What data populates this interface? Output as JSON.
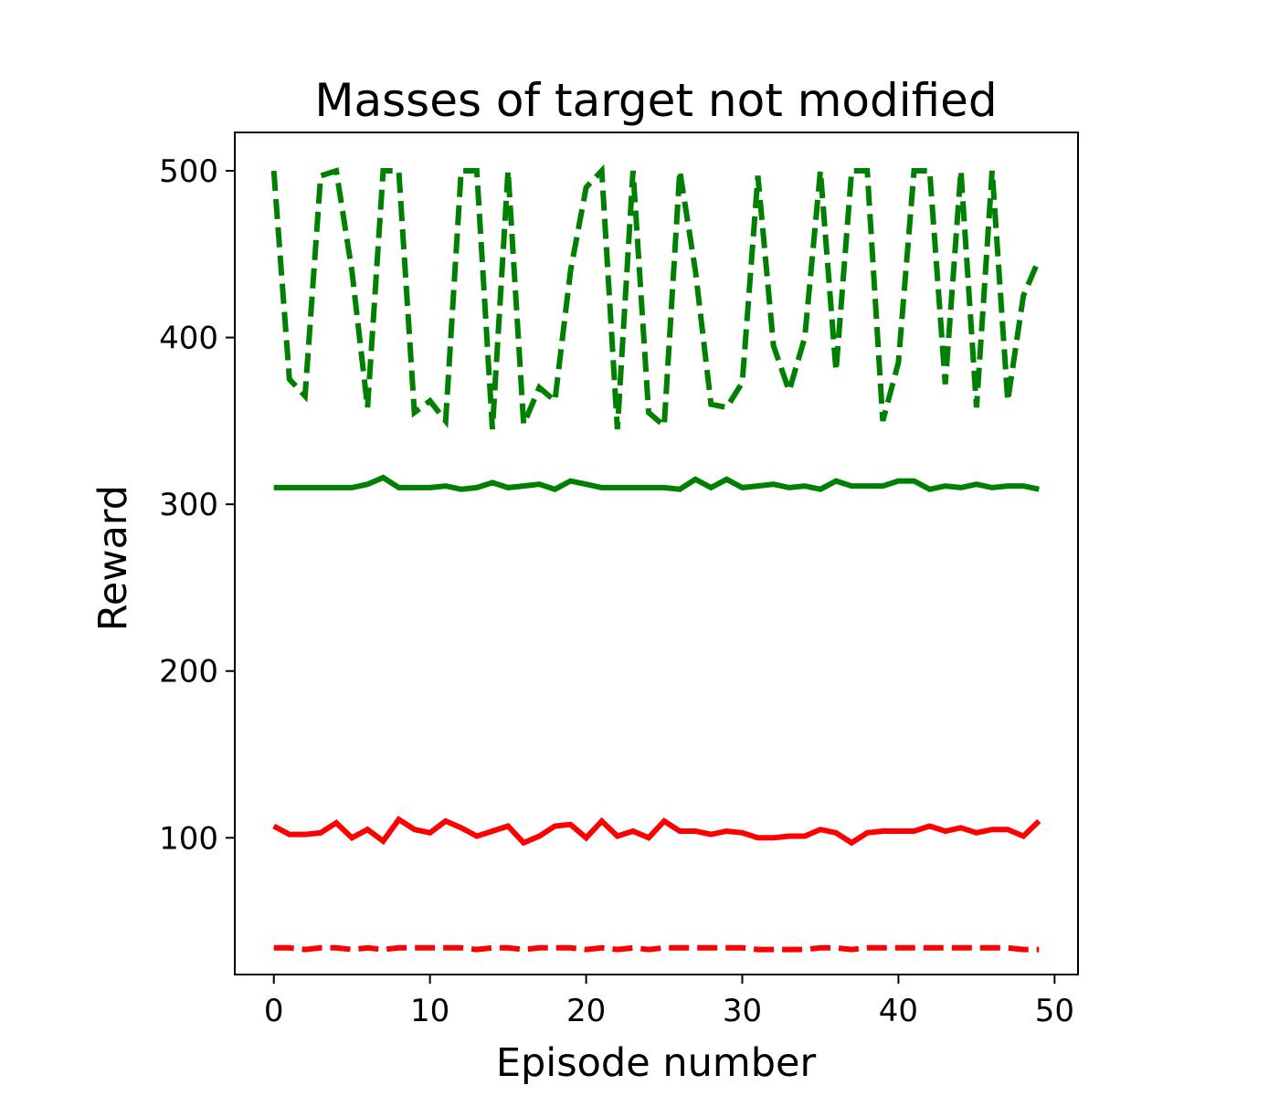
{
  "chart_data": {
    "type": "line",
    "title": "Masses of target not modified",
    "xlabel": "Episode number",
    "ylabel": "Reward",
    "xlim": [
      -2.5,
      51.5
    ],
    "ylim": [
      18,
      523
    ],
    "xticks": [
      0,
      10,
      20,
      30,
      40,
      50
    ],
    "yticks": [
      100,
      200,
      300,
      400,
      500
    ],
    "grid": false,
    "legend": "none",
    "x": [
      0,
      1,
      2,
      3,
      4,
      5,
      6,
      7,
      8,
      9,
      10,
      11,
      12,
      13,
      14,
      15,
      16,
      17,
      18,
      19,
      20,
      21,
      22,
      23,
      24,
      25,
      26,
      27,
      28,
      29,
      30,
      31,
      32,
      33,
      34,
      35,
      36,
      37,
      38,
      39,
      40,
      41,
      42,
      43,
      44,
      45,
      46,
      47,
      48,
      49
    ],
    "series": [
      {
        "color": "#008000",
        "style": "dashed",
        "values": [
          500,
          375,
          365,
          497,
          500,
          440,
          358,
          500,
          500,
          355,
          362,
          350,
          500,
          500,
          345,
          500,
          348,
          370,
          362,
          440,
          490,
          500,
          345,
          500,
          355,
          347,
          500,
          440,
          360,
          358,
          373,
          497,
          395,
          368,
          400,
          500,
          380,
          500,
          500,
          350,
          385,
          500,
          500,
          372,
          500,
          358,
          500,
          362,
          425,
          447
        ]
      },
      {
        "color": "#008000",
        "style": "solid",
        "values": [
          310,
          310,
          310,
          310,
          310,
          310,
          312,
          316,
          310,
          310,
          310,
          311,
          309,
          310,
          313,
          310,
          311,
          312,
          309,
          314,
          312,
          310,
          310,
          310,
          310,
          310,
          309,
          315,
          310,
          315,
          310,
          311,
          312,
          310,
          311,
          309,
          314,
          311,
          311,
          311,
          314,
          314,
          309,
          311,
          310,
          312,
          310,
          311,
          311,
          309
        ]
      },
      {
        "color": "#ff0000",
        "style": "solid",
        "values": [
          107,
          102,
          102,
          103,
          109,
          100,
          105,
          98,
          111,
          105,
          103,
          110,
          106,
          101,
          104,
          107,
          97,
          101,
          107,
          108,
          100,
          110,
          101,
          104,
          100,
          110,
          104,
          104,
          102,
          104,
          103,
          100,
          100,
          101,
          101,
          105,
          103,
          97,
          103,
          104,
          104,
          104,
          107,
          104,
          106,
          103,
          105,
          105,
          101,
          110
        ]
      },
      {
        "color": "#ff0000",
        "style": "dashed",
        "values": [
          34,
          34,
          33,
          34,
          34,
          33,
          34,
          33,
          34,
          34,
          34,
          34,
          34,
          33,
          34,
          34,
          33,
          34,
          34,
          34,
          33,
          34,
          33,
          34,
          33,
          34,
          34,
          34,
          34,
          34,
          34,
          33,
          33,
          33,
          33,
          34,
          34,
          33,
          34,
          34,
          34,
          34,
          34,
          34,
          34,
          34,
          34,
          34,
          33,
          33
        ]
      }
    ]
  }
}
